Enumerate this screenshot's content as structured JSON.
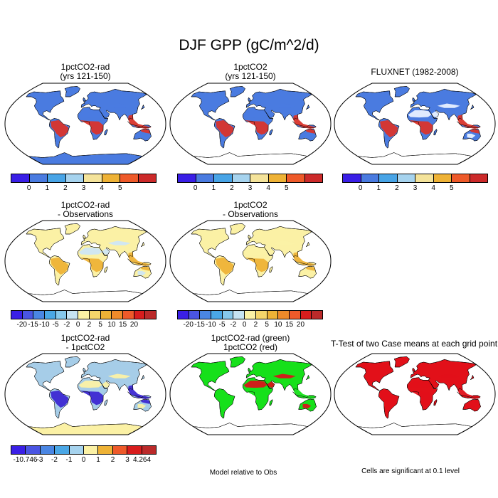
{
  "title": "DJF GPP (gC/m^2/d)",
  "panels": [
    {
      "id": "p1",
      "title1": "1pctCO2-rad",
      "title2": "(yrs 121-150)",
      "ocean": "#ffffff",
      "land": "#4a7be0",
      "tropics": "#d9342b",
      "desert": "#4a7be0",
      "antarctica": "#4a7be0"
    },
    {
      "id": "p2",
      "title1": "1pctCO2",
      "title2": "(yrs 121-150)",
      "ocean": "#ffffff",
      "land": "#4a7be0",
      "tropics": "#d9342b",
      "desert": "#4a7be0",
      "antarctica": "#ffffff"
    },
    {
      "id": "p3",
      "title1": "FLUXNET (1982-2008)",
      "title2": "",
      "ocean": "#ffffff",
      "land": "#4a7be0",
      "tropics": "#d9342b",
      "desert": "#e8f1ff",
      "antarctica": "#ffffff"
    },
    {
      "id": "p4",
      "title1": "1pctCO2-rad",
      "title2": "- Observations",
      "ocean": "#ffffff",
      "land": "#fbf1a5",
      "tropics": "#eeb236",
      "desert": "#cfe6f4",
      "antarctica": "#ffffff"
    },
    {
      "id": "p5",
      "title1": "1pctCO2",
      "title2": "- Observations",
      "ocean": "#ffffff",
      "land": "#fbf1a5",
      "tropics": "#eeb236",
      "desert": "#fbf1a5",
      "antarctica": "#ffffff"
    },
    {
      "id": "p6",
      "title1": "1pctCO2-rad",
      "title2": "- 1pctCO2",
      "ocean": "#ffffff",
      "land": "#a6cde8",
      "tropics": "#3c28d2",
      "desert": "#fbf1a5",
      "antarctica": "#fbf1a5"
    },
    {
      "id": "p7",
      "title1": "1pctCO2-rad (green)",
      "title2": "1pctCO2 (red)",
      "ocean": "#ffffff",
      "land": "#16e01a",
      "tropics": "#16e01a",
      "desert": "#d8141a",
      "antarctica": "#ffffff"
    },
    {
      "id": "p8",
      "title1": "T-Test of two Case means at each grid point",
      "title2": "",
      "ocean": "#ffffff",
      "land": "#e21019",
      "tropics": "#e21019",
      "desert": "#e21019",
      "antarctica": "#ffffff"
    }
  ],
  "colorbars": {
    "gpp": {
      "colors": [
        "#3a1fe6",
        "#4a7be0",
        "#48a4e6",
        "#a6d3ee",
        "#f4e39a",
        "#eeb236",
        "#ee5a2a",
        "#cc2a2a"
      ],
      "labels": [
        "0",
        "1",
        "2",
        "3",
        "4",
        "5"
      ]
    },
    "diff_obs": {
      "colors": [
        "#3a1fe6",
        "#4a55e3",
        "#4a86e3",
        "#4aa7e6",
        "#86c8ec",
        "#c6e3f3",
        "#fbf1a5",
        "#f5d56a",
        "#eeb236",
        "#ee8a2a",
        "#ee5a2a",
        "#d81d1d",
        "#bb2a2a"
      ],
      "labels": [
        "-20",
        "-15",
        "-10",
        "-5",
        "-2",
        "0",
        "2",
        "5",
        "10",
        "15",
        "20"
      ]
    },
    "diff_case": {
      "colors": [
        "#3a1fe6",
        "#4a55e3",
        "#4a86e3",
        "#4aa7e6",
        "#a6d3ee",
        "#fbf1a5",
        "#eeb236",
        "#ee5a2a",
        "#d81d1d",
        "#bb2a2a"
      ],
      "labels": [
        "-10.746",
        "-3",
        "-2",
        "-1",
        "0",
        "1",
        "2",
        "3",
        "4.264"
      ]
    }
  },
  "notes": {
    "model_rel": "Model relative to Obs",
    "signif": "Cells are significant at 0.1 level"
  }
}
